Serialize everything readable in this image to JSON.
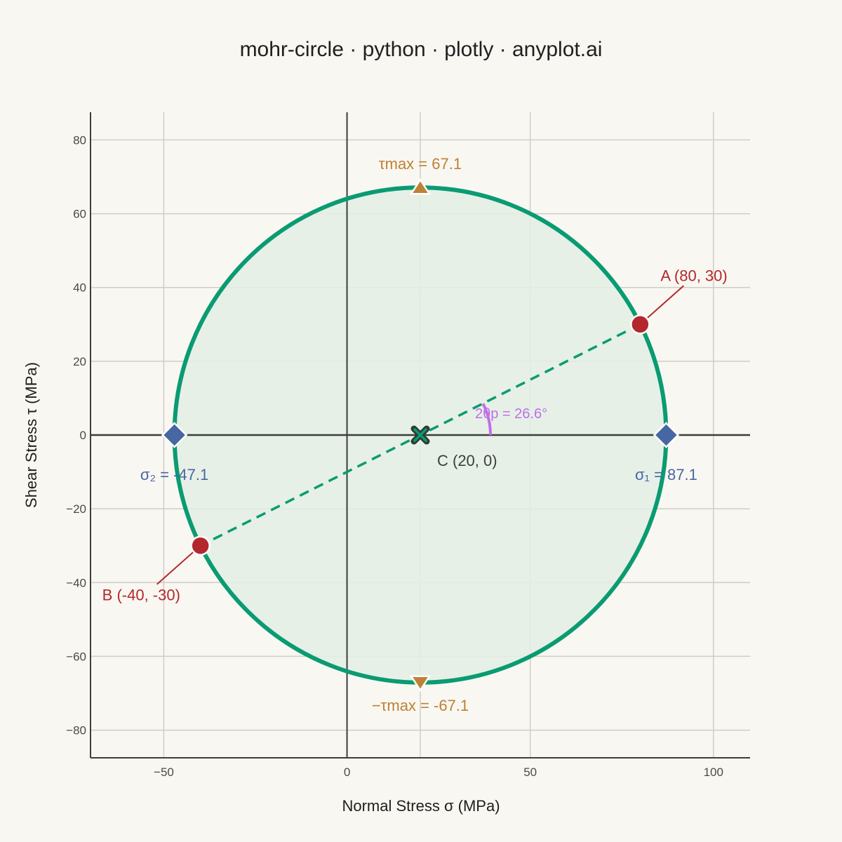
{
  "chart_data": {
    "type": "scatter",
    "title": "mohr-circle · python · plotly · anyplot.ai",
    "xlabel": "Normal Stress σ (MPa)",
    "ylabel": "Shear Stress τ (MPa)",
    "xlim": [
      -70,
      110
    ],
    "ylim": [
      -87.5,
      87.5
    ],
    "x_ticks": [
      -50,
      0,
      50,
      100
    ],
    "y_ticks": [
      -80,
      -60,
      -40,
      -20,
      0,
      20,
      40,
      60,
      80
    ],
    "x_tick_labels": [
      "−50",
      "0",
      "50",
      "100"
    ],
    "y_tick_labels": [
      "−80",
      "−60",
      "−40",
      "−20",
      "0",
      "20",
      "40",
      "60",
      "80"
    ],
    "grid": true,
    "circle": {
      "center": [
        20,
        0
      ],
      "radius": 67.1,
      "color": "#0a9b72",
      "fill": "#e3efe5"
    },
    "points": {
      "A": {
        "x": 80,
        "y": 30,
        "label": "A (80, 30)",
        "color": "#b3282d"
      },
      "B": {
        "x": -40,
        "y": -30,
        "label": "B (-40, -30)",
        "color": "#b3282d"
      },
      "C": {
        "x": 20,
        "y": 0,
        "label": "C (20, 0)",
        "color": "#3d3d3d"
      },
      "sigma1": {
        "x": 87.1,
        "y": 0,
        "label": "σ₁ = 87.1",
        "color": "#4767a3"
      },
      "sigma2": {
        "x": -47.1,
        "y": 0,
        "label": "σ₂ = -47.1",
        "color": "#4767a3"
      },
      "tau_max": {
        "x": 20,
        "y": 67.1,
        "label": "τmax = 67.1",
        "color": "#bd8235"
      },
      "tau_min": {
        "x": 20,
        "y": -67.1,
        "label": "−τmax = -67.1",
        "color": "#bd8235"
      }
    },
    "angle": {
      "label": "2θp = 26.6°",
      "degrees": 26.6,
      "color": "#c26ee8"
    }
  }
}
